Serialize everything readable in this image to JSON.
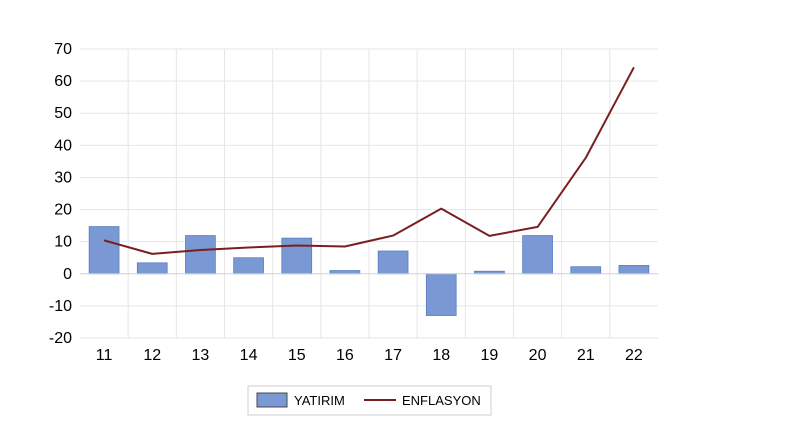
{
  "chart_data": {
    "type": "bar",
    "title": "",
    "xlabel": "",
    "ylabel": "",
    "categories": [
      "11",
      "12",
      "13",
      "14",
      "15",
      "16",
      "17",
      "18",
      "19",
      "20",
      "21",
      "22"
    ],
    "ylim": [
      -20,
      70
    ],
    "yticks": [
      -20,
      -10,
      0,
      10,
      20,
      30,
      40,
      50,
      60,
      70
    ],
    "grid": true,
    "legend_position": "bottom",
    "series": [
      {
        "name": "YATIRIM",
        "type": "bar",
        "color": "#7a99d4",
        "values": [
          14.7,
          3.4,
          11.9,
          5.0,
          11.1,
          1.0,
          7.1,
          -13.0,
          0.8,
          11.9,
          2.2,
          2.6
        ]
      },
      {
        "name": "ENFLASYON",
        "type": "line",
        "color": "#7a1f1f",
        "values": [
          10.4,
          6.2,
          7.4,
          8.2,
          8.8,
          8.5,
          11.9,
          20.3,
          11.8,
          14.6,
          36.1,
          64.3
        ]
      }
    ]
  }
}
